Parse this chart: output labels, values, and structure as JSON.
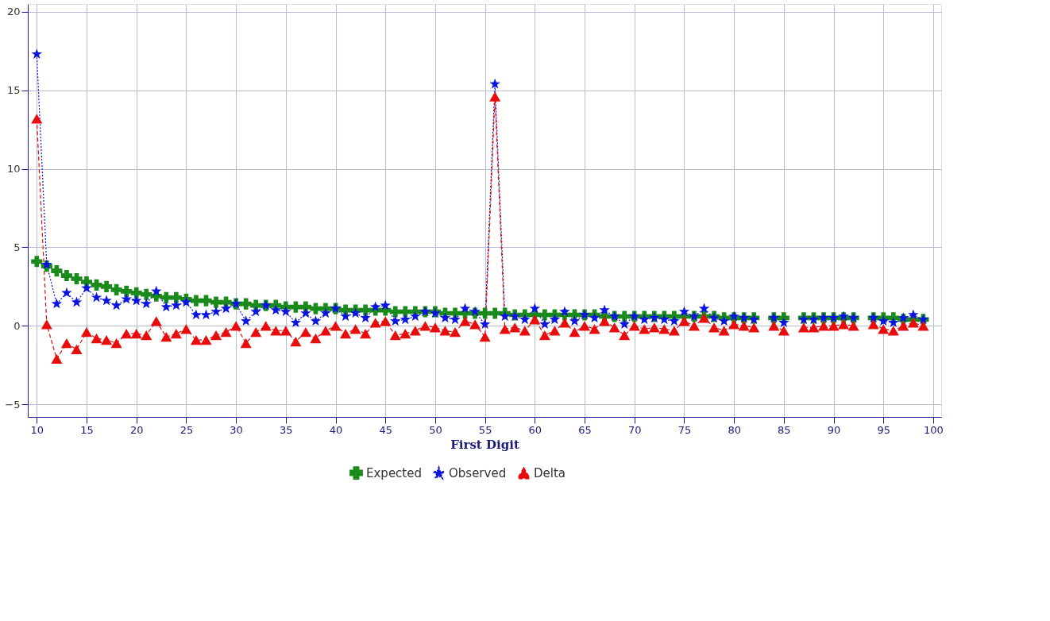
{
  "chart_data": {
    "type": "line",
    "xlabel": "First Digit",
    "x": [
      10,
      11,
      12,
      13,
      14,
      15,
      16,
      17,
      18,
      19,
      20,
      21,
      22,
      23,
      24,
      25,
      26,
      27,
      28,
      29,
      30,
      31,
      32,
      33,
      34,
      35,
      36,
      37,
      38,
      39,
      40,
      41,
      42,
      43,
      44,
      45,
      46,
      47,
      48,
      49,
      50,
      51,
      52,
      53,
      54,
      55,
      56,
      57,
      58,
      59,
      60,
      61,
      62,
      63,
      64,
      65,
      66,
      67,
      68,
      69,
      70,
      71,
      72,
      73,
      74,
      75,
      76,
      77,
      78,
      79,
      80,
      81,
      82,
      83,
      84,
      85,
      86,
      87,
      88,
      89,
      90,
      91,
      92,
      93,
      94,
      95,
      96,
      97,
      98,
      99
    ],
    "series": [
      {
        "name": "Expected",
        "color": "#1a8a1a",
        "marker": "cross",
        "line_style": "solid",
        "values": [
          4.1,
          3.8,
          3.5,
          3.2,
          3.0,
          2.8,
          2.6,
          2.5,
          2.3,
          2.2,
          2.1,
          2.0,
          1.9,
          1.8,
          1.8,
          1.7,
          1.6,
          1.6,
          1.5,
          1.5,
          1.4,
          1.4,
          1.3,
          1.3,
          1.3,
          1.2,
          1.2,
          1.2,
          1.1,
          1.1,
          1.1,
          1.0,
          1.0,
          1.0,
          1.0,
          1.0,
          0.9,
          0.9,
          0.9,
          0.9,
          0.9,
          0.8,
          0.8,
          0.8,
          0.8,
          0.8,
          0.8,
          0.8,
          0.7,
          0.7,
          0.7,
          0.7,
          0.7,
          0.7,
          0.7,
          0.7,
          0.7,
          0.6,
          0.6,
          0.6,
          0.6,
          0.6,
          0.6,
          0.6,
          0.6,
          0.6,
          0.6,
          0.6,
          0.6,
          0.5,
          0.5,
          0.5,
          0.5,
          null,
          0.5,
          0.5,
          null,
          0.5,
          0.5,
          0.5,
          0.5,
          0.5,
          0.5,
          null,
          0.5,
          0.5,
          0.5,
          0.4,
          0.4,
          0.4
        ]
      },
      {
        "name": "Observed",
        "color": "#0a14e0",
        "marker": "star",
        "line_style": "dotted",
        "values": [
          17.3,
          3.9,
          1.4,
          2.1,
          1.5,
          2.4,
          1.8,
          1.6,
          1.3,
          1.7,
          1.6,
          1.4,
          2.2,
          1.2,
          1.3,
          1.5,
          0.7,
          0.7,
          0.9,
          1.1,
          1.4,
          0.3,
          0.9,
          1.3,
          1.0,
          0.9,
          0.2,
          0.8,
          0.3,
          0.8,
          1.1,
          0.6,
          0.8,
          0.5,
          1.2,
          1.3,
          0.3,
          0.4,
          0.6,
          0.9,
          0.8,
          0.5,
          0.4,
          1.1,
          0.9,
          0.1,
          15.4,
          0.6,
          0.6,
          0.4,
          1.1,
          0.1,
          0.4,
          0.9,
          0.3,
          0.7,
          0.5,
          1.0,
          0.6,
          0.1,
          0.6,
          0.4,
          0.5,
          0.4,
          0.3,
          0.9,
          0.6,
          1.1,
          0.5,
          0.3,
          0.6,
          0.5,
          0.4,
          null,
          0.5,
          0.2,
          null,
          0.4,
          0.4,
          0.5,
          0.5,
          0.6,
          0.5,
          null,
          0.5,
          0.3,
          0.2,
          0.5,
          0.7,
          0.4
        ]
      },
      {
        "name": "Delta",
        "color": "#e80c0c",
        "marker": "triangle",
        "line_style": "dashed",
        "values": [
          13.2,
          0.1,
          -2.1,
          -1.1,
          -1.5,
          -0.4,
          -0.8,
          -0.9,
          -1.1,
          -0.5,
          -0.5,
          -0.6,
          0.3,
          -0.7,
          -0.5,
          -0.2,
          -0.9,
          -0.9,
          -0.6,
          -0.4,
          0.0,
          -1.1,
          -0.4,
          0.0,
          -0.3,
          -0.3,
          -1.0,
          -0.4,
          -0.8,
          -0.3,
          0.0,
          -0.5,
          -0.2,
          -0.5,
          0.2,
          0.3,
          -0.6,
          -0.5,
          -0.3,
          0.0,
          -0.1,
          -0.3,
          -0.4,
          0.3,
          0.1,
          -0.7,
          14.6,
          -0.2,
          -0.1,
          -0.3,
          0.4,
          -0.6,
          -0.3,
          0.2,
          -0.4,
          0.0,
          -0.2,
          0.3,
          -0.1,
          -0.6,
          0.0,
          -0.2,
          -0.1,
          -0.2,
          -0.3,
          0.3,
          0.0,
          0.5,
          -0.1,
          -0.3,
          0.1,
          0.0,
          -0.1,
          null,
          0.0,
          -0.3,
          null,
          -0.1,
          -0.1,
          0.0,
          0.0,
          0.1,
          0.0,
          null,
          0.1,
          -0.2,
          -0.3,
          0.0,
          0.2,
          0.0
        ]
      }
    ],
    "xlim": [
      9.1,
      100.8
    ],
    "xticks": [
      10,
      15,
      20,
      25,
      30,
      35,
      40,
      45,
      50,
      55,
      60,
      65,
      70,
      75,
      80,
      85,
      90,
      95,
      100
    ],
    "ylim": [
      -5.8,
      20.5
    ],
    "yticks": [
      -5,
      0,
      5,
      10,
      15,
      20
    ],
    "grid": true,
    "legend": "bottom"
  }
}
